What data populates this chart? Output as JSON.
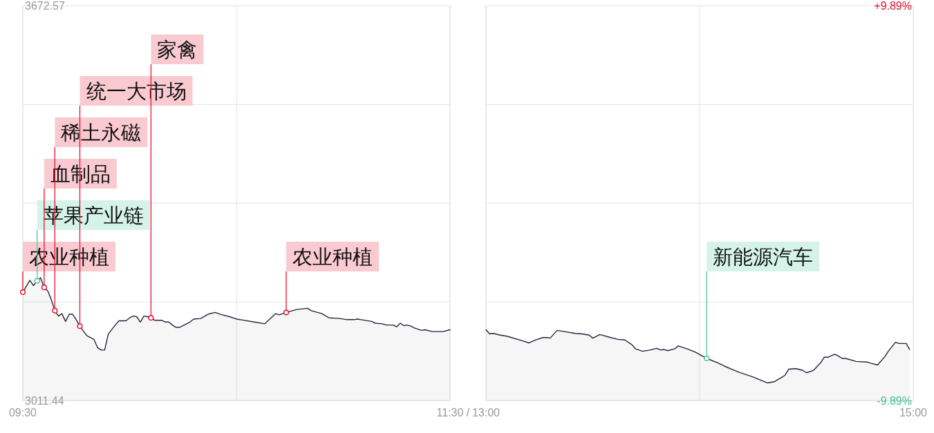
{
  "chart_data": [
    {
      "type": "area",
      "x": [
        9.5,
        9.533,
        9.55,
        9.567,
        9.583,
        9.6,
        9.617,
        9.633,
        9.65,
        9.667,
        9.683,
        9.7,
        9.717,
        9.733,
        9.75,
        9.767,
        9.8,
        9.833,
        9.85,
        9.867,
        9.883,
        9.9,
        9.933,
        9.95,
        9.983,
        10,
        10.017,
        10.033,
        10.05,
        10.067,
        10.083,
        10.1,
        10.117,
        10.15,
        10.167,
        10.183,
        10.2,
        10.217,
        10.233,
        10.267,
        10.283,
        10.3,
        10.333,
        10.367,
        10.4,
        10.433,
        10.467,
        10.5,
        10.533,
        10.583,
        10.633,
        10.65,
        10.683,
        10.7,
        10.733,
        10.783,
        10.833,
        10.85,
        10.9,
        10.933,
        10.983,
        11.017,
        11.05,
        11.067,
        11.083,
        11.133,
        11.15,
        11.183,
        11.2,
        11.233,
        11.25,
        11.267,
        11.283,
        11.3,
        11.317,
        11.333,
        11.367,
        11.383,
        11.417,
        11.467,
        11.5
      ],
      "series": [
        {
          "color": "#22233a",
          "values": [
            3193,
            3213,
            3204,
            3212,
            3217,
            3201,
            3195,
            3181,
            3162,
            3153,
            3157,
            3144,
            3156,
            3156,
            3147,
            3136,
            3120,
            3114,
            3100,
            3096,
            3096,
            3123,
            3138,
            3145,
            3145,
            3150,
            3153,
            3152,
            3143,
            3153,
            3152,
            3150,
            3146,
            3146,
            3143,
            3143,
            3138,
            3134,
            3134,
            3140,
            3143,
            3148,
            3149,
            3156,
            3159,
            3155,
            3152,
            3148,
            3146,
            3143,
            3140,
            3146,
            3157,
            3155,
            3159,
            3164,
            3166,
            3162,
            3157,
            3150,
            3149,
            3147,
            3147,
            3148,
            3147,
            3144,
            3141,
            3140,
            3138,
            3138,
            3135,
            3141,
            3137,
            3138,
            3136,
            3133,
            3129,
            3130,
            3127,
            3127,
            3130
          ]
        },
        {
          "type": "scatter",
          "color": "#e8102e",
          "x": [
            9.5,
            9.6,
            9.65,
            9.767,
            10.1,
            10.733
          ],
          "values": [
            3193,
            3201,
            3162,
            3136,
            3150,
            3159
          ]
        },
        {
          "type": "scatter",
          "color": "#46c79c",
          "x": [
            9.567
          ],
          "values": [
            3212
          ]
        }
      ],
      "xlim": [
        9.5,
        11.5
      ],
      "xticks": [
        {
          "value": 9.5,
          "label": "09:30"
        },
        {
          "value": 10.5,
          "label": null
        },
        {
          "value": 11.5,
          "label": "11:30"
        }
      ],
      "ylim": [
        3011.44,
        3672.57
      ],
      "yticks": [
        3011.44,
        {
          "value": 3176.72,
          "label": null
        },
        {
          "value": 3342.01,
          "label": null
        },
        {
          "value": 3507.29,
          "label": null
        },
        3672.57
      ],
      "grid": true,
      "annotations": [
        {
          "text": "农业种植",
          "x": 9.5,
          "y": 3193
        },
        {
          "text": "苹果产业链",
          "x": 9.567,
          "y": 3212
        },
        {
          "text": "血制品",
          "x": 9.6,
          "y": 3201
        },
        {
          "text": "稀土永磁",
          "x": 9.65,
          "y": 3162
        },
        {
          "text": "统一大市场",
          "x": 9.767,
          "y": 3136
        },
        {
          "text": "家禽",
          "x": 10.1,
          "y": 3150
        },
        {
          "text": "农业种植",
          "x": 10.733,
          "y": 3159
        },
        "/"
      ]
    },
    {
      "type": "area",
      "x": [
        13,
        13.017,
        13.033,
        13.067,
        13.1,
        13.167,
        13.2,
        13.233,
        13.267,
        13.283,
        13.3,
        13.333,
        13.367,
        13.417,
        13.45,
        13.483,
        13.5,
        13.533,
        13.583,
        13.617,
        13.65,
        13.683,
        13.7,
        13.733,
        13.767,
        13.8,
        13.817,
        13.833,
        13.85,
        13.883,
        13.9,
        13.95,
        13.983,
        14.033,
        14.083,
        14.117,
        14.15,
        14.183,
        14.217,
        14.25,
        14.283,
        14.317,
        14.35,
        14.383,
        14.4,
        14.417,
        14.45,
        14.483,
        14.5,
        14.533,
        14.567,
        14.583,
        14.6,
        14.633,
        14.65,
        14.667,
        14.683,
        14.733,
        14.783,
        14.8,
        14.833,
        14.867,
        14.883,
        14.917,
        14.933,
        14.967,
        14.983
      ],
      "series": [
        {
          "color": "#22233a",
          "values": [
            3130,
            3123,
            3124,
            3121,
            3119,
            3112,
            3108,
            3113,
            3117,
            3117,
            3116,
            3129,
            3127,
            3124,
            3123,
            3121,
            3116,
            3122,
            3117,
            3114,
            3113,
            3105,
            3098,
            3094,
            3096,
            3099,
            3096,
            3097,
            3095,
            3098,
            3103,
            3097,
            3092,
            3082,
            3075,
            3069,
            3064,
            3059,
            3055,
            3051,
            3046,
            3041,
            3043,
            3050,
            3054,
            3064,
            3065,
            3062,
            3058,
            3062,
            3075,
            3084,
            3084,
            3089,
            3086,
            3082,
            3082,
            3077,
            3076,
            3074,
            3071,
            3085,
            3094,
            3109,
            3107,
            3107,
            3097
          ]
        },
        {
          "type": "scatter",
          "color": "#46c79c",
          "x": [
            14.033
          ],
          "values": [
            3082
          ]
        }
      ],
      "xlim": [
        13,
        15
      ],
      "xticks": [
        {
          "value": 13,
          "label": "13:00"
        },
        {
          "value": 14,
          "label": null
        },
        {
          "value": 15,
          "label": "15:00"
        }
      ],
      "ylim": [
        3011.44,
        3672.57
      ],
      "y2lim": [
        -9.89,
        9.89
      ],
      "y2ticks": [
        {
          "value": 9.89,
          "label": "+9.89%"
        },
        {
          "value": 4.945,
          "label": null
        },
        {
          "value": 0,
          "label": null
        },
        {
          "value": -4.945,
          "label": null
        },
        {
          "value": -9.89,
          "label": "-9.89%"
        }
      ],
      "tick_labels": "x",
      "grid": true,
      "annotations": [
        {
          "text": "新能源汽车",
          "x": 14.033,
          "y": 3082
        }
      ]
    }
  ]
}
